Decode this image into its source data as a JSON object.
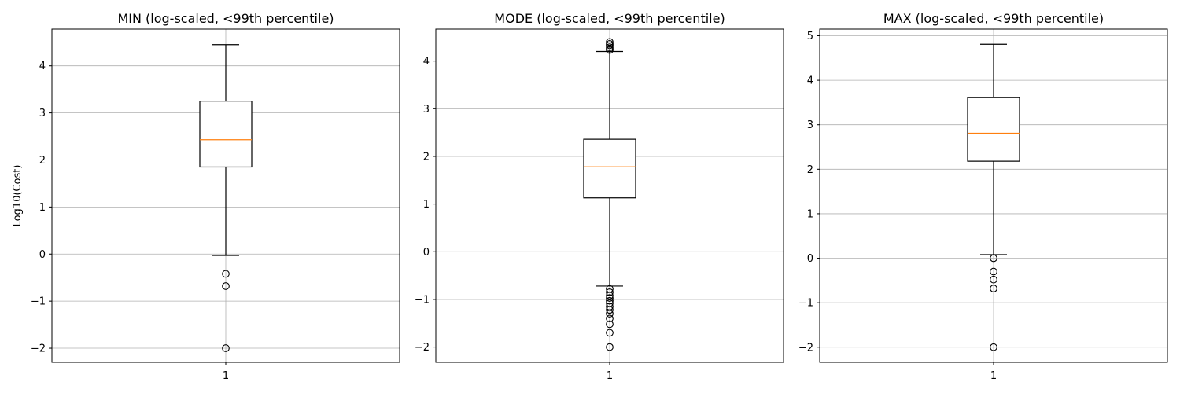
{
  "chart_data": [
    {
      "type": "box",
      "title": "MIN (log-scaled, <99th percentile)",
      "ylabel": "Log10(Cost)",
      "xlabel": "",
      "categories": [
        "1"
      ],
      "ylim": [
        -2.3,
        4.78
      ],
      "yticks": [
        -2,
        -1,
        0,
        1,
        2,
        3,
        4
      ],
      "grid": true,
      "box": {
        "whisker_low": -0.03,
        "q1": 1.85,
        "median": 2.43,
        "q3": 3.25,
        "whisker_high": 4.45
      },
      "outliers": [
        -0.42,
        -0.68,
        -2.0
      ]
    },
    {
      "type": "box",
      "title": "MODE (log-scaled, <99th percentile)",
      "ylabel": "",
      "xlabel": "",
      "categories": [
        "1"
      ],
      "ylim": [
        -2.32,
        4.67
      ],
      "yticks": [
        -2,
        -1,
        0,
        1,
        2,
        3,
        4
      ],
      "grid": true,
      "box": {
        "whisker_low": -0.72,
        "q1": 1.13,
        "median": 1.78,
        "q3": 2.36,
        "whisker_high": 4.2
      },
      "outliers": [
        4.23,
        4.26,
        4.29,
        4.33,
        4.36,
        4.4,
        -0.78,
        -0.85,
        -0.92,
        -0.97,
        -1.03,
        -1.08,
        -1.15,
        -1.22,
        -1.3,
        -1.4,
        -1.52,
        -1.7,
        -2.0
      ]
    },
    {
      "type": "box",
      "title": "MAX (log-scaled, <99th percentile)",
      "ylabel": "",
      "xlabel": "",
      "categories": [
        "1"
      ],
      "ylim": [
        -2.34,
        5.15
      ],
      "yticks": [
        -2,
        -1,
        0,
        1,
        2,
        3,
        4,
        5
      ],
      "grid": true,
      "box": {
        "whisker_low": 0.08,
        "q1": 2.18,
        "median": 2.81,
        "q3": 3.61,
        "whisker_high": 4.81
      },
      "outliers": [
        0.0,
        -0.3,
        -0.48,
        -0.68,
        -2.0
      ]
    }
  ],
  "colors": {
    "median": "#ff7f0e",
    "box": "#000000",
    "grid": "#b0b0b0"
  }
}
